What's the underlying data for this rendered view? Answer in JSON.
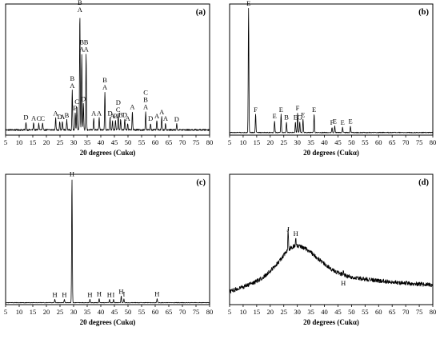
{
  "chart_data": [
    {
      "type": "line",
      "panel_label": "(a)",
      "xlabel": "20 degrees (Cukα)",
      "x_ticks": [
        5,
        10,
        15,
        20,
        25,
        30,
        35,
        40,
        45,
        50,
        55,
        60,
        65,
        70,
        75,
        80
      ],
      "xlim": [
        5,
        80
      ],
      "ylim": [
        0,
        100
      ],
      "baseline": 4,
      "noise": 0.6,
      "hump": null,
      "peaks": [
        {
          "x": 12.5,
          "y": 6,
          "label": "D"
        },
        {
          "x": 15.3,
          "y": 5.5,
          "label": "A"
        },
        {
          "x": 17.2,
          "y": 5,
          "label": "C"
        },
        {
          "x": 18.6,
          "y": 5,
          "label": "C"
        },
        {
          "x": 23.4,
          "y": 9,
          "label": "A"
        },
        {
          "x": 24.9,
          "y": 6.5,
          "label": "D"
        },
        {
          "x": 25.9,
          "y": 6.5,
          "label": "A"
        },
        {
          "x": 27.5,
          "y": 7.5,
          "label": "B"
        },
        {
          "x": 29.5,
          "y": 30,
          "label": "B\nA"
        },
        {
          "x": 30.6,
          "y": 13,
          "label": "B"
        },
        {
          "x": 31.2,
          "y": 18,
          "label": "C"
        },
        {
          "x": 32.3,
          "y": 88,
          "label": "B\nA"
        },
        {
          "x": 33.0,
          "y": 58,
          "label": "B\nA"
        },
        {
          "x": 33.6,
          "y": 20,
          "label": "D"
        },
        {
          "x": 34.6,
          "y": 58,
          "label": "B\nA"
        },
        {
          "x": 37.4,
          "y": 9,
          "label": "A"
        },
        {
          "x": 39.4,
          "y": 9,
          "label": "A"
        },
        {
          "x": 41.5,
          "y": 29,
          "label": "B\nA"
        },
        {
          "x": 43.4,
          "y": 9,
          "label": "D"
        },
        {
          "x": 44.3,
          "y": 7,
          "label": "A"
        },
        {
          "x": 45.4,
          "y": 7,
          "label": "B"
        },
        {
          "x": 46.4,
          "y": 12,
          "label": "D\nC"
        },
        {
          "x": 47.3,
          "y": 8,
          "label": "B"
        },
        {
          "x": 48.8,
          "y": 8,
          "label": "D"
        },
        {
          "x": 49.9,
          "y": 5,
          "label": "A"
        },
        {
          "x": 51.6,
          "y": 14,
          "label": "A"
        },
        {
          "x": 56.5,
          "y": 14,
          "label": "C\nB\nA"
        },
        {
          "x": 58.3,
          "y": 5,
          "label": "D"
        },
        {
          "x": 60.6,
          "y": 7,
          "label": "A"
        },
        {
          "x": 62.4,
          "y": 10,
          "label": "A"
        },
        {
          "x": 63.8,
          "y": 5,
          "label": "A"
        },
        {
          "x": 67.9,
          "y": 4.5,
          "label": "D"
        }
      ]
    },
    {
      "type": "line",
      "panel_label": "(b)",
      "xlabel": "20 degrees (Cukα)",
      "x_ticks": [
        5,
        10,
        15,
        20,
        25,
        30,
        35,
        40,
        45,
        50,
        55,
        60,
        65,
        70,
        75,
        80
      ],
      "xlim": [
        5,
        80
      ],
      "ylim": [
        0,
        100
      ],
      "baseline": 2,
      "noise": 0.3,
      "hump": null,
      "peaks": [
        {
          "x": 12.0,
          "y": 95,
          "label": "E"
        },
        {
          "x": 14.6,
          "y": 14,
          "label": "F"
        },
        {
          "x": 21.6,
          "y": 9,
          "label": "E"
        },
        {
          "x": 24.0,
          "y": 14,
          "label": "E"
        },
        {
          "x": 26.0,
          "y": 8,
          "label": "B"
        },
        {
          "x": 29.3,
          "y": 8,
          "label": "E"
        },
        {
          "x": 30.1,
          "y": 15,
          "label": "F"
        },
        {
          "x": 30.9,
          "y": 8,
          "label": "G"
        },
        {
          "x": 32.1,
          "y": 10,
          "label": "E"
        },
        {
          "x": 36.2,
          "y": 14,
          "label": "E"
        },
        {
          "x": 42.8,
          "y": 4,
          "label": "F"
        },
        {
          "x": 43.8,
          "y": 5,
          "label": "E"
        },
        {
          "x": 46.7,
          "y": 4,
          "label": "E"
        },
        {
          "x": 49.6,
          "y": 5,
          "label": "E"
        }
      ]
    },
    {
      "type": "line",
      "panel_label": "(c)",
      "xlabel": "20 degrees (Cukα)",
      "x_ticks": [
        5,
        10,
        15,
        20,
        25,
        30,
        35,
        40,
        45,
        50,
        55,
        60,
        65,
        70,
        75,
        80
      ],
      "xlim": [
        5,
        80
      ],
      "ylim": [
        0,
        100
      ],
      "baseline": 1.5,
      "noise": 0.2,
      "hump": null,
      "peaks": [
        {
          "x": 23.1,
          "y": 2.5,
          "label": "H"
        },
        {
          "x": 26.6,
          "y": 2.5,
          "label": "H"
        },
        {
          "x": 29.4,
          "y": 95,
          "label": "H"
        },
        {
          "x": 36.0,
          "y": 2.5,
          "label": "H"
        },
        {
          "x": 39.4,
          "y": 3,
          "label": "H"
        },
        {
          "x": 43.2,
          "y": 2.5,
          "label": "H"
        },
        {
          "x": 44.7,
          "y": 2.5,
          "label": "I"
        },
        {
          "x": 47.5,
          "y": 5,
          "label": "H"
        },
        {
          "x": 48.5,
          "y": 3,
          "label": "I"
        },
        {
          "x": 60.7,
          "y": 3,
          "label": "H"
        }
      ]
    },
    {
      "type": "line",
      "panel_label": "(d)",
      "xlabel": "20 degrees (Cukα)",
      "x_ticks": [
        5,
        10,
        15,
        20,
        25,
        30,
        35,
        40,
        45,
        50,
        55,
        60,
        65,
        70,
        75,
        80
      ],
      "xlim": [
        5,
        80
      ],
      "ylim": [
        0,
        100
      ],
      "baseline": 10,
      "noise": 1.6,
      "hump": {
        "center": 29.5,
        "width": 4.5,
        "height": 35,
        "tail_level": 18
      },
      "peaks": [
        {
          "x": 26.6,
          "y": 16,
          "label": "J"
        },
        {
          "x": 29.4,
          "y": 6,
          "label": "H"
        },
        {
          "x": 47.0,
          "y": 3,
          "label": "H"
        }
      ]
    }
  ]
}
